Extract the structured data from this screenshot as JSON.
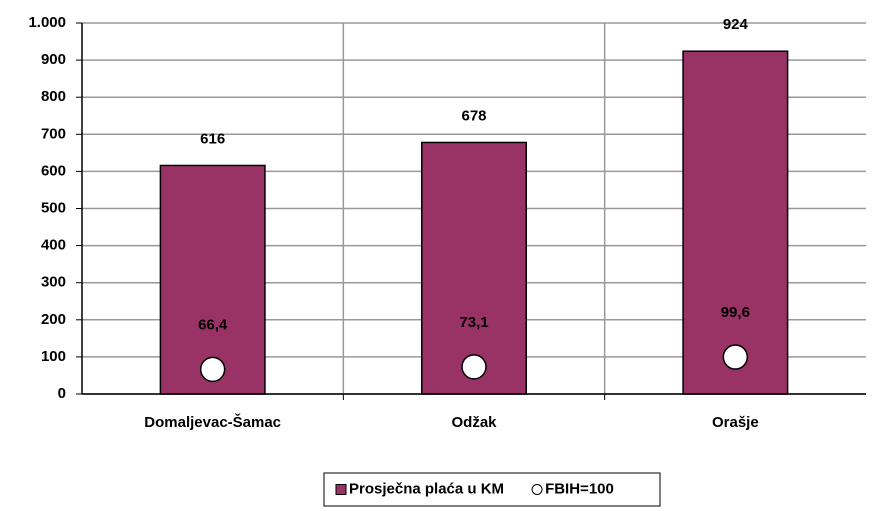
{
  "chart_data": {
    "type": "bar",
    "categories": [
      "Domaljevac-Šamac",
      "Odžak",
      "Orašje"
    ],
    "series": [
      {
        "name": "Prosječna plaća u KM",
        "color": "#993366",
        "values": [
          616,
          678,
          924
        ]
      },
      {
        "name": "FBIH=100",
        "color": "#ffffff",
        "marker": "circle",
        "values": [
          66.4,
          73.1,
          99.6
        ],
        "value_labels": [
          "66,4",
          "73,1",
          "99,6"
        ]
      }
    ],
    "ylim": [
      0,
      1000
    ],
    "yticks": [
      0,
      100,
      200,
      300,
      400,
      500,
      600,
      700,
      800,
      900,
      {
        "value": 1000,
        "label": "1.000"
      }
    ],
    "grid": true,
    "legend": "bottom"
  }
}
